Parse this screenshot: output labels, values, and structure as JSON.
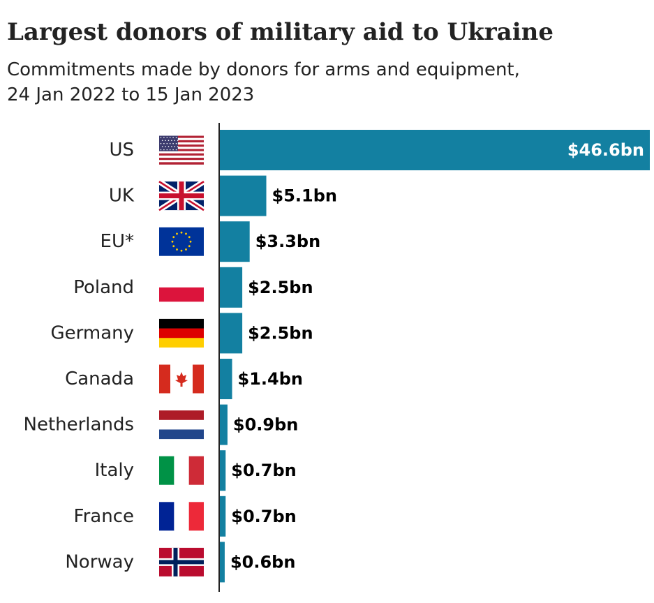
{
  "title": "Largest donors of military aid to Ukraine",
  "subtitle_lines": [
    "Commitments made by donors for arms and equipment,",
    "24 Jan 2022 to 15 Jan 2023"
  ],
  "colors": {
    "bar": "#1380A1",
    "axis": "#222222",
    "text": "#222222"
  },
  "chart_data": {
    "type": "bar",
    "orientation": "horizontal",
    "unit": "$bn",
    "categories": [
      "US",
      "UK",
      "EU*",
      "Poland",
      "Germany",
      "Canada",
      "Netherlands",
      "Italy",
      "France",
      "Norway"
    ],
    "values": [
      46.6,
      5.1,
      3.3,
      2.5,
      2.5,
      1.4,
      0.9,
      0.7,
      0.7,
      0.6
    ],
    "value_labels": [
      "$46.6bn",
      "$5.1bn",
      "$3.3bn",
      "$2.5bn",
      "$2.5bn",
      "$1.4bn",
      "$0.9bn",
      "$0.7bn",
      "$0.7bn",
      "$0.6bn"
    ],
    "flag_icons": [
      "us-flag-icon",
      "uk-flag-icon",
      "eu-flag-icon",
      "poland-flag-icon",
      "germany-flag-icon",
      "canada-flag-icon",
      "netherlands-flag-icon",
      "italy-flag-icon",
      "france-flag-icon",
      "norway-flag-icon"
    ],
    "xlim": [
      0,
      46.6
    ],
    "grid": false,
    "legend": "none"
  }
}
